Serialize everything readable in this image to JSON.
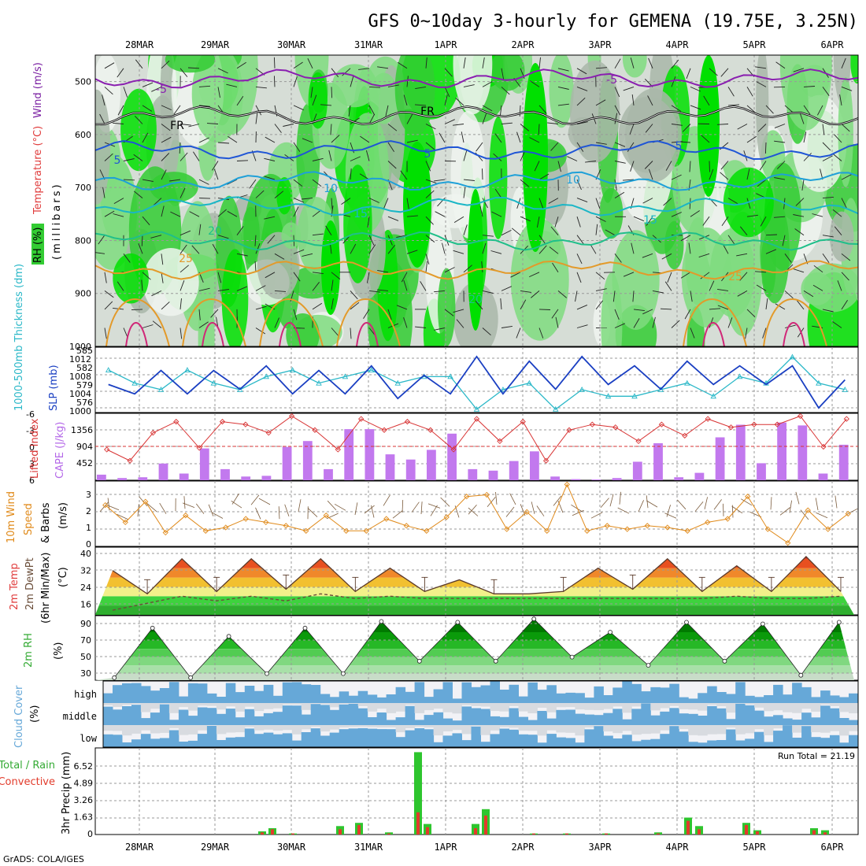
{
  "title": "GFS 0~10day 3-hourly for GEMENA (19.75E, 3.25N)",
  "credit": "GrADS: COLA/IGES",
  "dates": [
    "28MAR",
    "29MAR",
    "30MAR",
    "31MAR",
    "1APR",
    "2APR",
    "3APR",
    "4APR",
    "5APR",
    "6APR"
  ],
  "colors": {
    "rh_light": "#d6ddd6",
    "rh_mid": "#7fdc7f",
    "rh_dark": "#33cc33",
    "rh_bright": "#00e000",
    "wind": "#7a1fa2",
    "temp": "#e03c3c",
    "rh_label": "#33aa33",
    "slp": "#1a3fc2",
    "thick": "#2bb8c8",
    "cape": "#c279ee",
    "li": "#d83333",
    "wspd": "#e08a1a",
    "cloud": "#66a8d8",
    "precip_total": "#2ec52e",
    "precip_conv": "#e23b2b"
  },
  "panels": {
    "upper": {
      "ylabel_wind": "Wind (m/s)",
      "ylabel_temp": "Temperature (°C)",
      "ylabel_rh": "RH (%)",
      "ylabel_unit": "(millibars)",
      "yticks": [
        "500",
        "600",
        "700",
        "800",
        "900",
        "1000"
      ],
      "contour_labels": [
        "-5",
        "-5",
        "FR",
        "FR",
        "5",
        "5",
        "5",
        "10",
        "10",
        "15",
        "15",
        "20",
        "20",
        "25",
        "25"
      ]
    },
    "slp": {
      "ylabel_thick": "1000-500mb Thickness (dm)",
      "ylabel_slp": "SLP (mb)",
      "left_ticks": [
        "585",
        "582",
        "579",
        "576"
      ],
      "right_ticks": [
        "1012",
        "1008",
        "1004",
        "1000"
      ]
    },
    "cape": {
      "ylabel_li": "Lifted Index",
      "ylabel_cape": "CAPE (J/kg)",
      "left_ticks": [
        "-6",
        "-3",
        "0",
        "3",
        "6"
      ],
      "right_ticks": [
        "1356",
        "904",
        "452"
      ]
    },
    "wind10": {
      "ylabel_a": "10m Wind",
      "ylabel_b": "Speed",
      "ylabel_c": "& Barbs",
      "ylabel_unit": "(m/s)",
      "ticks": [
        "3",
        "2",
        "1",
        "0"
      ]
    },
    "temp2m": {
      "ylabel_a": "2m Temp",
      "ylabel_b": "2m DewPt",
      "ylabel_c": "(6hr Min/Max)",
      "ylabel_unit": "(°C)",
      "ticks": [
        "40",
        "32",
        "24",
        "16"
      ]
    },
    "rh2m": {
      "ylabel": "2m RH",
      "ylabel_unit": "(%)",
      "ticks": [
        "90",
        "70",
        "50",
        "30"
      ]
    },
    "cloud": {
      "ylabel": "Cloud Cover",
      "ylabel_unit": "(%)",
      "levels": [
        "high",
        "middle",
        "low"
      ]
    },
    "precip": {
      "ylabel_total": "Total / Rain",
      "ylabel_conv": "Convective",
      "ylabel_unit": "3hr Precip (mm)",
      "ticks": [
        "6.52",
        "4.89",
        "3.26",
        "1.63",
        "0"
      ],
      "run_total": "Run Total = 21.19"
    }
  },
  "chart_data": [
    {
      "type": "heatmap",
      "title": "Upper air RH / Temperature / Wind",
      "ylabel": "(millibars)",
      "y_range": [
        1000,
        450
      ],
      "temperature_contours_c": [
        -5,
        0,
        5,
        10,
        15,
        20,
        25
      ],
      "freezing_level_mb": [
        545,
        560,
        585,
        560,
        550,
        560,
        575,
        570,
        560,
        575,
        580,
        575
      ],
      "x": [
        "28MAR",
        "29MAR",
        "30MAR",
        "31MAR",
        "1APR",
        "2APR",
        "3APR",
        "4APR",
        "5APR",
        "6APR"
      ]
    },
    {
      "type": "line",
      "title": "SLP and 1000-500mb Thickness",
      "series": [
        {
          "name": "SLP (mb)",
          "values": [
            1006,
            1004,
            1009,
            1004,
            1009,
            1005,
            1010,
            1004,
            1009,
            1004,
            1010,
            1003,
            1008,
            1004,
            1012,
            1004,
            1011,
            1005,
            1012,
            1006,
            1010,
            1005,
            1011,
            1006,
            1010,
            1006,
            1010,
            1001,
            1007
          ]
        },
        {
          "name": "Thickness (dm)",
          "values": [
            582,
            580,
            579,
            582,
            580,
            579,
            581,
            582,
            580,
            581,
            582,
            580,
            581,
            581,
            576,
            579,
            580,
            576,
            579,
            578,
            578,
            579,
            580,
            578,
            581,
            580,
            584,
            580,
            579
          ]
        }
      ],
      "ylim_slp": [
        1000,
        1014
      ],
      "ylim_thick": [
        575.5,
        585.5
      ]
    },
    {
      "type": "bar",
      "title": "CAPE and Lifted Index",
      "series": [
        {
          "name": "CAPE (J/kg)",
          "values": [
            150,
            60,
            80,
            450,
            180,
            860,
            300,
            100,
            120,
            900,
            1060,
            300,
            1380,
            1380,
            700,
            560,
            820,
            1260,
            300,
            260,
            520,
            780,
            100,
            30,
            20,
            60,
            500,
            1000,
            80,
            200,
            1160,
            1500,
            460,
            1560,
            1480,
            180,
            960
          ]
        },
        {
          "name": "Lifted Index",
          "values": [
            0.5,
            2.5,
            -2.5,
            -4.5,
            0.2,
            -4.5,
            -4.0,
            -2.5,
            -5.5,
            -3.0,
            0.5,
            -5.0,
            -3.0,
            -4.5,
            -3.0,
            0.5,
            -5.0,
            -1.0,
            -4.5,
            2.5,
            -3.0,
            -4.0,
            -3.5,
            -1.0,
            -4.0,
            -2.0,
            -5.0,
            -3.5,
            -4.0,
            -4.0,
            -5.5,
            0.0,
            -5.0
          ]
        }
      ],
      "ylim_cape": [
        0,
        1808
      ],
      "ylim_li": [
        6,
        -6
      ]
    },
    {
      "type": "line",
      "title": "10m Wind Speed",
      "series": [
        {
          "name": "10m Wind Speed (m/s)",
          "values": [
            2.4,
            1.4,
            2.6,
            0.8,
            1.8,
            0.9,
            1.1,
            1.6,
            1.4,
            1.2,
            0.9,
            1.8,
            0.9,
            0.9,
            1.6,
            1.2,
            0.9,
            1.7,
            2.9,
            3.0,
            1.0,
            2.0,
            0.9,
            3.6,
            0.9,
            1.2,
            1.0,
            1.2,
            1.1,
            0.9,
            1.4,
            1.6,
            2.9,
            1.0,
            0.2,
            2.1,
            1.0,
            1.9
          ]
        }
      ],
      "ylim": [
        0,
        3.8
      ]
    },
    {
      "type": "area",
      "title": "2m Temperature and Dew Point",
      "series": [
        {
          "name": "2m Temp (°C)",
          "values": [
            31,
            21,
            36,
            22,
            36,
            23,
            36,
            22,
            32,
            22,
            27,
            21,
            21,
            22,
            32,
            23,
            36,
            22,
            33,
            22,
            37,
            22
          ]
        },
        {
          "name": "2m DewPt (°C)",
          "values": [
            14,
            17,
            20,
            18,
            20,
            18,
            21,
            19,
            20,
            19,
            19,
            19,
            19,
            19,
            19,
            19,
            19,
            19,
            20,
            19,
            19,
            20
          ]
        }
      ],
      "ylim": [
        12,
        41
      ]
    },
    {
      "type": "area",
      "title": "2m RH",
      "series": [
        {
          "name": "2m RH (%)",
          "values": [
            25,
            85,
            25,
            75,
            30,
            85,
            30,
            93,
            45,
            92,
            45,
            96,
            50,
            80,
            40,
            92,
            45,
            90,
            28,
            92
          ]
        }
      ],
      "ylim": [
        22,
        100
      ]
    },
    {
      "type": "heatmap",
      "title": "Cloud Cover",
      "categories": [
        "high",
        "middle",
        "low"
      ]
    },
    {
      "type": "bar",
      "title": "3hr Precip",
      "series": [
        {
          "name": "Total (mm)",
          "values": [
            0.3,
            0.6,
            0.1,
            0.8,
            1.1,
            0.2,
            7.8,
            1.0,
            1.0,
            2.4,
            0.1,
            0.1,
            0.1,
            0.2,
            1.6,
            0.8,
            1.1,
            0.4,
            0.6,
            0.4
          ]
        },
        {
          "name": "Convective (mm)",
          "values": [
            0.2,
            0.5,
            0.1,
            0.5,
            0.9,
            0.1,
            2.1,
            0.7,
            0.6,
            1.8,
            0.1,
            0.1,
            0.1,
            0.1,
            1.3,
            0.5,
            0.9,
            0.3,
            0.4,
            0.2
          ]
        }
      ],
      "ylim": [
        0,
        8.2
      ]
    }
  ]
}
